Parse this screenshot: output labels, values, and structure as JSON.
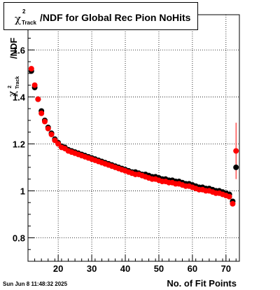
{
  "title": {
    "symbol": "χ",
    "superscript": "2",
    "subscript": "Track",
    "text": "/NDF for Global Rec Pion NoHits"
  },
  "footer_timestamp": "Sun Jun  8 11:48:32 2025",
  "chart_data": {
    "type": "scatter",
    "xlabel": "No. of Fit Points",
    "ylabel": "/NDF",
    "ylabel_parts": {
      "superscript": "2",
      "subscript": "Track"
    },
    "xlim": [
      11,
      74
    ],
    "ylim": [
      0.7,
      1.75
    ],
    "x_ticks": [
      20,
      30,
      40,
      50,
      60,
      70
    ],
    "y_ticks": [
      0.8,
      1,
      1.2,
      1.4,
      1.6
    ],
    "y_tick_labels": [
      "0.8",
      "1",
      "1.2",
      "1.4",
      "1.6"
    ],
    "grid": true,
    "colors": {
      "series_black": "#000000",
      "series_red": "#ff0000",
      "error_bar": "#ff0000"
    },
    "series": [
      {
        "color": "black",
        "x": [
          12,
          13,
          14,
          15,
          16,
          17,
          18,
          19,
          20,
          21,
          22,
          23,
          24,
          25,
          26,
          27,
          28,
          29,
          30,
          31,
          32,
          33,
          34,
          35,
          36,
          37,
          38,
          39,
          40,
          41,
          42,
          43,
          44,
          45,
          46,
          47,
          48,
          49,
          50,
          51,
          52,
          53,
          54,
          55,
          56,
          57,
          58,
          59,
          60,
          61,
          62,
          63,
          64,
          65,
          66,
          67,
          68,
          69,
          70,
          71,
          72,
          73
        ],
        "y": [
          1.51,
          1.44,
          1.39,
          1.34,
          1.3,
          1.27,
          1.245,
          1.22,
          1.205,
          1.19,
          1.185,
          1.175,
          1.17,
          1.165,
          1.16,
          1.155,
          1.15,
          1.145,
          1.14,
          1.135,
          1.13,
          1.125,
          1.12,
          1.115,
          1.11,
          1.105,
          1.1,
          1.095,
          1.09,
          1.085,
          1.08,
          1.08,
          1.075,
          1.07,
          1.07,
          1.065,
          1.06,
          1.06,
          1.055,
          1.05,
          1.05,
          1.045,
          1.045,
          1.04,
          1.04,
          1.035,
          1.03,
          1.03,
          1.025,
          1.02,
          1.015,
          1.015,
          1.01,
          1.01,
          1.005,
          1.0,
          1.0,
          0.995,
          0.99,
          0.985,
          0.955,
          1.1
        ]
      },
      {
        "color": "red",
        "x": [
          12,
          13,
          14,
          15,
          16,
          17,
          18,
          19,
          20,
          21,
          22,
          23,
          24,
          25,
          26,
          27,
          28,
          29,
          30,
          31,
          32,
          33,
          34,
          35,
          36,
          37,
          38,
          39,
          40,
          41,
          42,
          43,
          44,
          45,
          46,
          47,
          48,
          49,
          50,
          51,
          52,
          53,
          54,
          55,
          56,
          57,
          58,
          59,
          60,
          61,
          62,
          63,
          64,
          65,
          66,
          67,
          68,
          69,
          70,
          71,
          72,
          73
        ],
        "y": [
          1.52,
          1.45,
          1.39,
          1.33,
          1.295,
          1.265,
          1.24,
          1.215,
          1.2,
          1.185,
          1.18,
          1.17,
          1.165,
          1.16,
          1.155,
          1.15,
          1.145,
          1.14,
          1.135,
          1.13,
          1.125,
          1.12,
          1.115,
          1.11,
          1.105,
          1.1,
          1.095,
          1.09,
          1.085,
          1.08,
          1.075,
          1.07,
          1.07,
          1.065,
          1.06,
          1.055,
          1.05,
          1.05,
          1.045,
          1.04,
          1.04,
          1.035,
          1.035,
          1.03,
          1.03,
          1.025,
          1.02,
          1.02,
          1.015,
          1.01,
          1.005,
          1.005,
          1.0,
          1.0,
          0.995,
          0.99,
          0.99,
          0.985,
          0.98,
          0.975,
          0.945,
          1.17
        ],
        "yerr_last": [
          1.05,
          1.29
        ]
      }
    ]
  }
}
